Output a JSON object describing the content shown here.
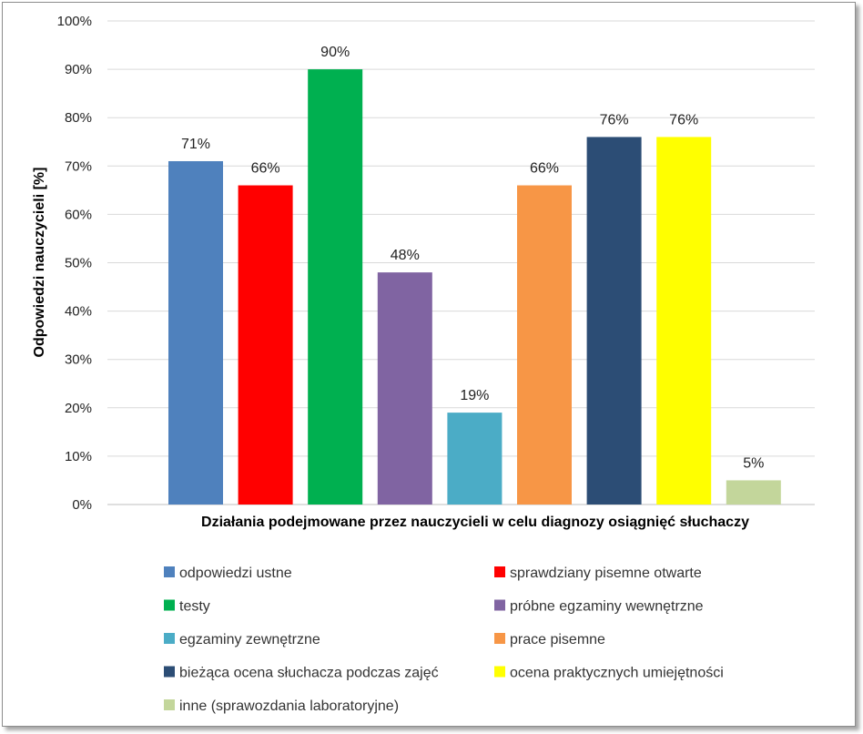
{
  "chart_data": {
    "type": "bar",
    "xlabel": "Działania podejmowane przez nauczycieli w celu diagnozy osiągnięć słuchaczy",
    "ylabel": "Odpowiedzi nauczycieli [%]",
    "ylim": [
      0,
      100
    ],
    "yticks": [
      "0%",
      "10%",
      "20%",
      "30%",
      "40%",
      "50%",
      "60%",
      "70%",
      "80%",
      "90%",
      "100%"
    ],
    "grid": true,
    "legend_position": "bottom",
    "series": [
      {
        "name": "odpowiedzi ustne",
        "value": 71,
        "label": "71%",
        "color": "#4f81bd"
      },
      {
        "name": "sprawdziany pisemne otwarte",
        "value": 66,
        "label": "66%",
        "color": "#ff0000"
      },
      {
        "name": "testy",
        "value": 90,
        "label": "90%",
        "color": "#00b050"
      },
      {
        "name": "próbne egzaminy wewnętrzne",
        "value": 48,
        "label": "48%",
        "color": "#8064a2"
      },
      {
        "name": "egzaminy zewnętrzne",
        "value": 19,
        "label": "19%",
        "color": "#4bacc6"
      },
      {
        "name": "prace pisemne",
        "value": 66,
        "label": "66%",
        "color": "#f79646"
      },
      {
        "name": "bieżąca ocena słuchacza podczas zajęć",
        "value": 76,
        "label": "76%",
        "color": "#2c4d75"
      },
      {
        "name": "ocena praktycznych umiejętności",
        "value": 76,
        "label": "76%",
        "color": "#ffff00"
      },
      {
        "name": "inne (sprawozdania laboratoryjne)",
        "value": 5,
        "label": "5%",
        "color": "#c3d69b"
      }
    ]
  }
}
